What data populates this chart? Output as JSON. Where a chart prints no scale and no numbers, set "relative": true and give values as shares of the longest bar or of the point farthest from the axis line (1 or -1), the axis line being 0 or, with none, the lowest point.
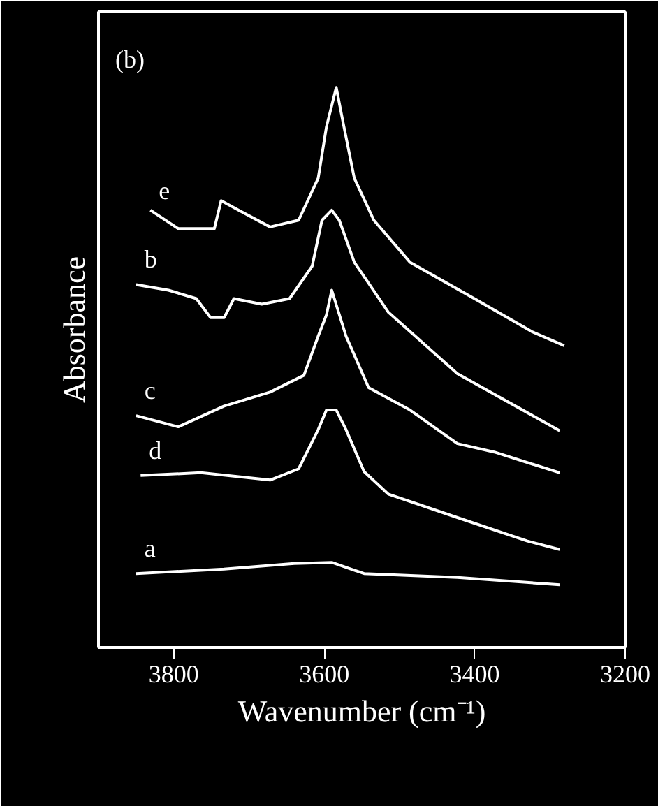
{
  "chart_data": {
    "type": "line",
    "relative": true,
    "xlabel": "Wavenumber (cm⁻¹)",
    "ylabel": "Absorbance",
    "xlim": [
      3900,
      3200
    ],
    "xticks": [
      3800,
      3600,
      3400,
      3200
    ],
    "grid": false,
    "legend": false,
    "annotations": [
      "(b)"
    ],
    "series": [
      {
        "name": "e",
        "color": "#ffffff",
        "x": [
          3831,
          3794,
          3746,
          3737,
          3714,
          3672,
          3634,
          3608,
          3597,
          3584,
          3575,
          3560,
          3534,
          3486,
          3398,
          3324,
          3281
        ],
        "values": [
          0.781,
          0.748,
          0.748,
          0.798,
          0.781,
          0.751,
          0.763,
          0.838,
          0.93,
          1,
          0.938,
          0.838,
          0.763,
          0.688,
          0.621,
          0.564,
          0.539
        ]
      },
      {
        "name": "b",
        "color": "#ffffff",
        "x": [
          3850,
          3807,
          3770,
          3751,
          3733,
          3720,
          3683,
          3646,
          3616,
          3603,
          3590,
          3580,
          3560,
          3515,
          3423,
          3287
        ],
        "values": [
          0.648,
          0.638,
          0.623,
          0.589,
          0.589,
          0.623,
          0.613,
          0.623,
          0.681,
          0.763,
          0.781,
          0.763,
          0.688,
          0.599,
          0.489,
          0.387
        ]
      },
      {
        "name": "c",
        "color": "#ffffff",
        "x": [
          3850,
          3794,
          3733,
          3672,
          3627,
          3608,
          3597,
          3590,
          3571,
          3541,
          3486,
          3423,
          3374,
          3287
        ],
        "values": [
          0.414,
          0.394,
          0.431,
          0.456,
          0.486,
          0.556,
          0.594,
          0.638,
          0.556,
          0.464,
          0.424,
          0.364,
          0.349,
          0.312
        ]
      },
      {
        "name": "d",
        "color": "#ffffff",
        "x": [
          3844,
          3764,
          3672,
          3634,
          3608,
          3597,
          3584,
          3571,
          3547,
          3515,
          3423,
          3330,
          3287
        ],
        "values": [
          0.307,
          0.312,
          0.299,
          0.319,
          0.389,
          0.424,
          0.424,
          0.389,
          0.314,
          0.274,
          0.232,
          0.19,
          0.175
        ]
      },
      {
        "name": "a",
        "color": "#ffffff",
        "x": [
          3850,
          3733,
          3640,
          3590,
          3547,
          3423,
          3287
        ],
        "values": [
          0.132,
          0.14,
          0.15,
          0.152,
          0.132,
          0.125,
          0.112
        ]
      }
    ]
  }
}
